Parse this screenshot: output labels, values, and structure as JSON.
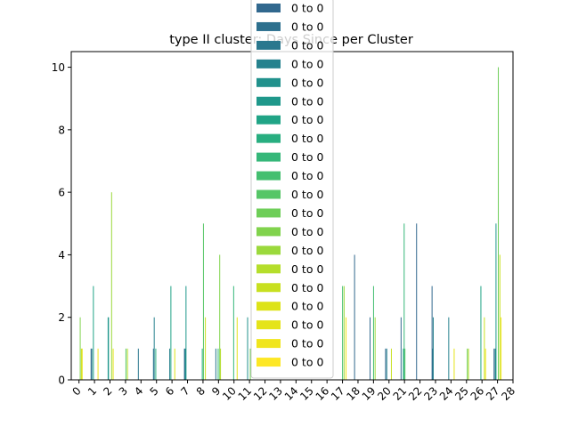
{
  "chart_data": {
    "type": "bar",
    "title": "type II cluster: Days Since per Cluster",
    "xlabel": "",
    "ylabel": "",
    "ylim": [
      0,
      10.5
    ],
    "yticks": [
      0,
      2,
      4,
      6,
      8,
      10
    ],
    "grid": false,
    "legend_placement": "upper center",
    "categories": [
      "0",
      "1",
      "2",
      "3",
      "4",
      "5",
      "6",
      "7",
      "8",
      "9",
      "10",
      "11",
      "12",
      "13",
      "14",
      "15",
      "16",
      "17",
      "18",
      "19",
      "20",
      "21",
      "22",
      "23",
      "24",
      "25",
      "26",
      "27",
      "28"
    ],
    "legend": [
      "0 to 0",
      "0 to 0",
      "0 to 0",
      "0 to 0",
      "0 to 0",
      "0 to 0",
      "0 to 0",
      "0 to 0",
      "0 to 0",
      "0 to 0",
      "0 to 0",
      "0 to 0",
      "0 to 0",
      "0 to 0",
      "0 to 0",
      "0 to 0",
      "0 to 0",
      "0 to 0",
      "0 to 0",
      "0 to 0"
    ],
    "series_colors": [
      "#31688e",
      "#2d708e",
      "#2a788e",
      "#26828e",
      "#21918c",
      "#1f988b",
      "#20a486",
      "#28ae80",
      "#35b779",
      "#44bf70",
      "#56c667",
      "#6ece58",
      "#81d34d",
      "#9bd93c",
      "#b5de2b",
      "#c8e020",
      "#dde318",
      "#e5e419",
      "#f0e51d",
      "#fde725"
    ],
    "bars": [
      {
        "x": 0,
        "s": 12,
        "v": 2
      },
      {
        "x": 0,
        "s": 15,
        "v": 1
      },
      {
        "x": 0,
        "s": 17,
        "v": 1
      },
      {
        "x": 1,
        "s": 0,
        "v": 1
      },
      {
        "x": 1,
        "s": 2,
        "v": 1
      },
      {
        "x": 1,
        "s": 6,
        "v": 3
      },
      {
        "x": 1,
        "s": 18,
        "v": 1
      },
      {
        "x": 2,
        "s": 4,
        "v": 2
      },
      {
        "x": 2,
        "s": 5,
        "v": 2
      },
      {
        "x": 2,
        "s": 13,
        "v": 6
      },
      {
        "x": 2,
        "s": 17,
        "v": 1
      },
      {
        "x": 3,
        "s": 10,
        "v": 1
      },
      {
        "x": 3,
        "s": 14,
        "v": 1
      },
      {
        "x": 4,
        "s": 2,
        "v": 1
      },
      {
        "x": 5,
        "s": 1,
        "v": 1
      },
      {
        "x": 5,
        "s": 3,
        "v": 2
      },
      {
        "x": 5,
        "s": 7,
        "v": 1
      },
      {
        "x": 6,
        "s": 3,
        "v": 1
      },
      {
        "x": 6,
        "s": 6,
        "v": 3
      },
      {
        "x": 6,
        "s": 16,
        "v": 1
      },
      {
        "x": 7,
        "s": 1,
        "v": 1
      },
      {
        "x": 7,
        "s": 3,
        "v": 1
      },
      {
        "x": 7,
        "s": 5,
        "v": 3
      },
      {
        "x": 8,
        "s": 7,
        "v": 1
      },
      {
        "x": 8,
        "s": 10,
        "v": 5
      },
      {
        "x": 8,
        "s": 15,
        "v": 2
      },
      {
        "x": 9,
        "s": 2,
        "v": 1
      },
      {
        "x": 9,
        "s": 8,
        "v": 1
      },
      {
        "x": 9,
        "s": 12,
        "v": 4
      },
      {
        "x": 9,
        "s": 14,
        "v": 1
      },
      {
        "x": 10,
        "s": 8,
        "v": 3
      },
      {
        "x": 10,
        "s": 17,
        "v": 2
      },
      {
        "x": 11,
        "s": 4,
        "v": 2
      },
      {
        "x": 11,
        "s": 11,
        "v": 1
      },
      {
        "x": 17,
        "s": 9,
        "v": 3
      },
      {
        "x": 17,
        "s": 13,
        "v": 3
      },
      {
        "x": 17,
        "s": 18,
        "v": 2
      },
      {
        "x": 18,
        "s": 0,
        "v": 4
      },
      {
        "x": 19,
        "s": 0,
        "v": 2
      },
      {
        "x": 19,
        "s": 9,
        "v": 3
      },
      {
        "x": 19,
        "s": 13,
        "v": 2
      },
      {
        "x": 20,
        "s": 0,
        "v": 1
      },
      {
        "x": 20,
        "s": 3,
        "v": 1
      },
      {
        "x": 20,
        "s": 15,
        "v": 1
      },
      {
        "x": 21,
        "s": 0,
        "v": 2
      },
      {
        "x": 21,
        "s": 6,
        "v": 1
      },
      {
        "x": 21,
        "s": 8,
        "v": 5
      },
      {
        "x": 21,
        "s": 10,
        "v": 1
      },
      {
        "x": 22,
        "s": 0,
        "v": 5
      },
      {
        "x": 23,
        "s": 0,
        "v": 3
      },
      {
        "x": 23,
        "s": 2,
        "v": 1
      },
      {
        "x": 23,
        "s": 3,
        "v": 2
      },
      {
        "x": 24,
        "s": 3,
        "v": 2
      },
      {
        "x": 24,
        "s": 17,
        "v": 1
      },
      {
        "x": 25,
        "s": 11,
        "v": 1
      },
      {
        "x": 25,
        "s": 14,
        "v": 1
      },
      {
        "x": 26,
        "s": 6,
        "v": 3
      },
      {
        "x": 26,
        "s": 15,
        "v": 2
      },
      {
        "x": 26,
        "s": 18,
        "v": 1
      },
      {
        "x": 27,
        "s": 0,
        "v": 1
      },
      {
        "x": 27,
        "s": 3,
        "v": 1
      },
      {
        "x": 27,
        "s": 5,
        "v": 5
      },
      {
        "x": 27,
        "s": 11,
        "v": 10
      },
      {
        "x": 27,
        "s": 15,
        "v": 4
      },
      {
        "x": 27,
        "s": 18,
        "v": 2
      }
    ]
  }
}
